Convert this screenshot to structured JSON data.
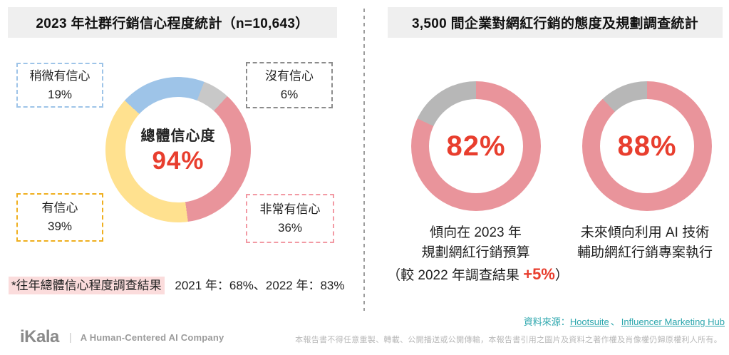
{
  "left_panel": {
    "title": "2023 年社群行銷信心程度統計（n=10,643）",
    "donut": {
      "center_label": "總體信心度",
      "center_value": "94%",
      "labels": {
        "slight": {
          "name": "稍微有信心",
          "value": "19%"
        },
        "none": {
          "name": "沒有信心",
          "value": "6%"
        },
        "confident": {
          "name": "有信心",
          "value": "39%"
        },
        "very": {
          "name": "非常有信心",
          "value": "36%"
        }
      }
    },
    "footnote_highlight": "*往年總體信心程度調查結果",
    "footnote_rest": "2021 年：68%、2022 年：83%"
  },
  "right_panel": {
    "title": "3,500 間企業對網紅行銷的態度及規劃調查統計",
    "donut_budget": {
      "value": "82%",
      "caption_line1": "傾向在 2023 年",
      "caption_line2": "規劃網紅行銷預算",
      "note_prefix": "（較 2022 年調查結果 ",
      "note_highlight": "+5%",
      "note_suffix": "）"
    },
    "donut_ai": {
      "value": "88%",
      "caption_line1": "未來傾向利用 AI 技術",
      "caption_line2": "輔助網紅行銷專案執行"
    },
    "source": {
      "label": "資料來源：",
      "links": [
        "Hootsuite",
        "Influencer Marketing Hub"
      ],
      "separator": "、"
    }
  },
  "footer": {
    "logo": "iKala",
    "logo_separator": "|",
    "tagline": "A Human-Centered AI Company",
    "disclaimer": "本報告書不得任意重製、轉載、公開播送或公開傳輸，本報告書引用之圖片及資料之著作權及肖像權仍歸原權利人所有。"
  },
  "colors": {
    "accent_red": "#E83E2E",
    "teal_link": "#2BA6AD",
    "title_bg": "#EFEFEF",
    "footnote_highlight_bg": "#FBDCDC",
    "segment_blue": "#9EC4E8",
    "segment_yellow": "#FFE18F",
    "segment_pink": "#E9949B",
    "segment_gray_left": "#C8C8C8",
    "segment_gray_right": "#B7B7B7"
  },
  "chart_data": [
    {
      "type": "pie",
      "donut": true,
      "title": "2023 年社群行銷信心程度統計",
      "sample_size": "n=10,643",
      "center_label": "總體信心度",
      "center_value": 94,
      "unit": "%",
      "start_deg": 21,
      "segments": [
        {
          "label": "沒有信心",
          "value": 6,
          "color": "#C8C8C8"
        },
        {
          "label": "非常有信心",
          "value": 36,
          "color": "#E9949B"
        },
        {
          "label": "有信心",
          "value": 39,
          "color": "#FFE18F"
        },
        {
          "label": "稍微有信心",
          "value": 19,
          "color": "#9EC4E8"
        }
      ],
      "history": [
        {
          "year": "2021",
          "value": 68
        },
        {
          "year": "2022",
          "value": 83
        }
      ]
    },
    {
      "type": "pie",
      "donut": true,
      "title": "傾向在 2023 年規劃網紅行銷預算",
      "center_value": 82,
      "unit": "%",
      "start_deg": 0,
      "delta_vs_2022": "+5%",
      "segments": [
        {
          "label": "傾向在 2023 年規劃網紅行銷預算",
          "value": 82,
          "color": "#E9949B"
        },
        {
          "label": "",
          "value": 18,
          "color": "#B7B7B7"
        }
      ]
    },
    {
      "type": "pie",
      "donut": true,
      "title": "未來傾向利用 AI 技術輔助網紅行銷專案執行",
      "center_value": 88,
      "unit": "%",
      "start_deg": 0,
      "segments": [
        {
          "label": "未來傾向利用 AI 技術輔助網紅行銷專案執行",
          "value": 88,
          "color": "#E9949B"
        },
        {
          "label": "",
          "value": 12,
          "color": "#B7B7B7"
        }
      ]
    }
  ]
}
